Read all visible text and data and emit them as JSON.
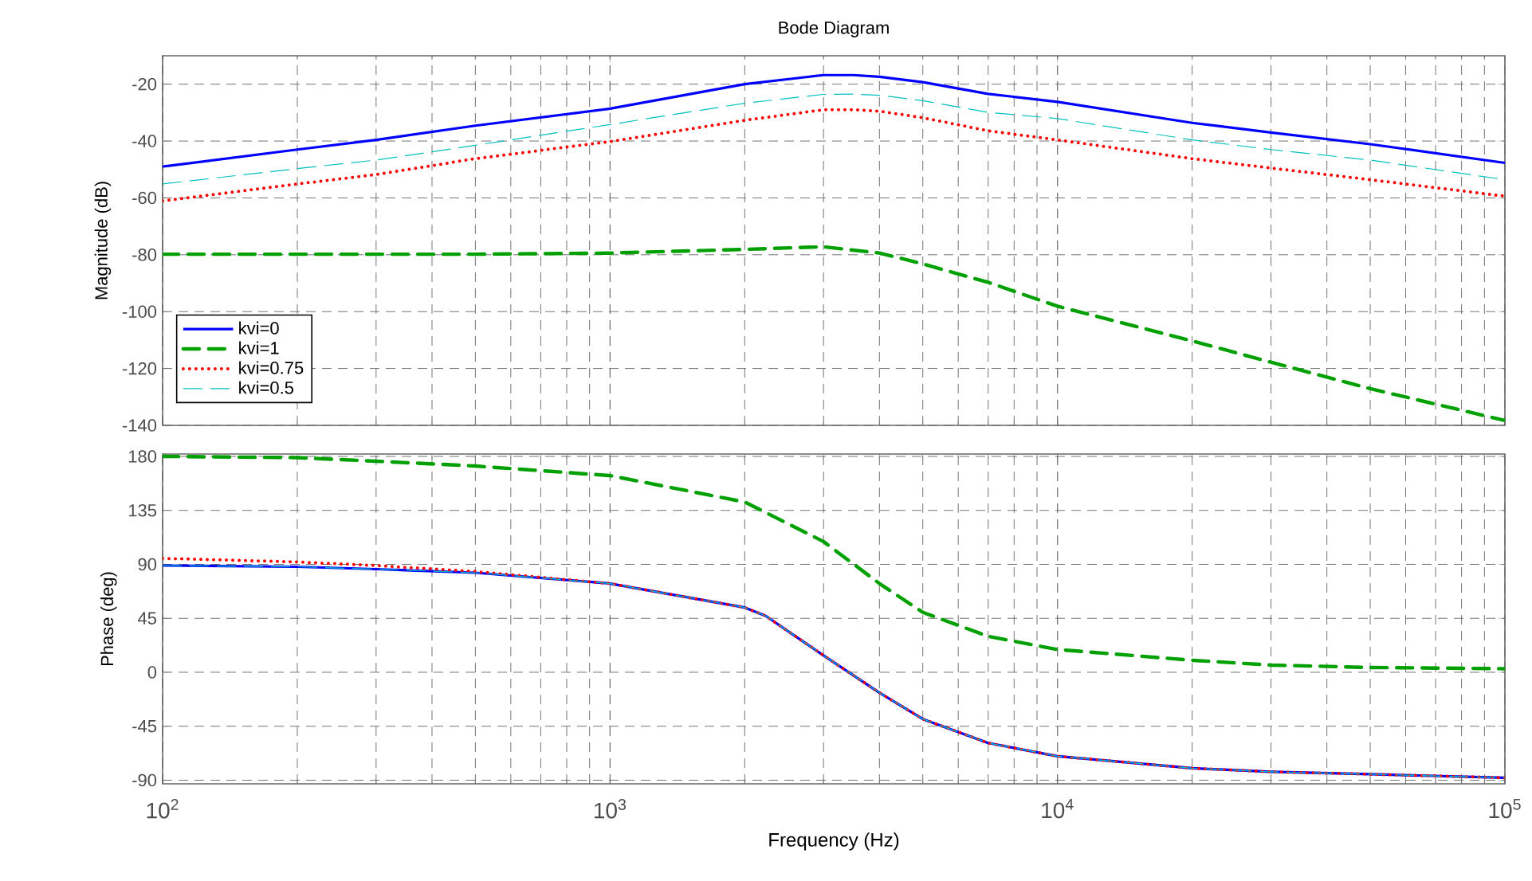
{
  "chart_data": [
    {
      "type": "line",
      "title": "Bode Diagram",
      "ylabel": "Magnitude (dB)",
      "log": "x",
      "grid": true,
      "legend": "bottom left",
      "tick_labels": "y",
      "xlim": [
        100,
        100000
      ],
      "xticks": [
        {
          "value": 100,
          "label": null
        },
        {
          "value": 1000,
          "label": null
        },
        {
          "value": 10000,
          "label": null
        },
        {
          "value": 100000,
          "label": null
        }
      ],
      "ylim": [
        -140,
        -10
      ],
      "yticks": [
        -140,
        -120,
        -100,
        -80,
        -60,
        -40,
        -20
      ],
      "series": [
        {
          "name": "kvi=0",
          "color": "#0000ff",
          "line_style": "solid",
          "x": [
            100,
            200,
            300,
            500,
            1000,
            2000,
            3000,
            3500,
            4000,
            5000,
            7000,
            10000,
            20000,
            30000,
            50000,
            100000
          ],
          "values": [
            -49.0,
            -43.0,
            -39.6,
            -34.6,
            -28.6,
            -20.0,
            -16.8,
            -16.8,
            -17.4,
            -19.3,
            -23.4,
            -26.2,
            -33.6,
            -37.0,
            -41.1,
            -47.7
          ]
        },
        {
          "name": "kvi=1",
          "color": "#00a000",
          "line_style": "dashdot",
          "x": [
            100,
            500,
            1000,
            2000,
            3000,
            4000,
            5000,
            7000,
            10000,
            20000,
            30000,
            50000,
            100000
          ],
          "values": [
            -79.8,
            -79.8,
            -79.4,
            -78.1,
            -77.2,
            -79.4,
            -83.2,
            -89.7,
            -98.1,
            -110.3,
            -117.8,
            -127.1,
            -138.3
          ]
        },
        {
          "name": "kvi=0.75",
          "color": "#ff0000",
          "line_style": "dotted",
          "x": [
            100,
            200,
            300,
            500,
            1000,
            2000,
            3000,
            3500,
            4000,
            5000,
            7000,
            10000,
            20000,
            30000,
            50000,
            100000
          ],
          "values": [
            -61.1,
            -55.1,
            -51.8,
            -46.2,
            -40.2,
            -32.7,
            -29.0,
            -29.0,
            -29.5,
            -31.8,
            -36.4,
            -39.6,
            -46.2,
            -49.5,
            -53.6,
            -59.4
          ]
        },
        {
          "name": "kvi=0.5",
          "color": "#00c0c0",
          "line_style": "dashed",
          "x": [
            100,
            200,
            300,
            500,
            1000,
            2000,
            3000,
            3500,
            4000,
            5000,
            7000,
            10000,
            20000,
            30000,
            50000,
            100000
          ],
          "values": [
            -55.1,
            -49.7,
            -46.7,
            -41.5,
            -34.2,
            -26.7,
            -23.6,
            -23.5,
            -23.9,
            -25.8,
            -29.9,
            -32.1,
            -39.6,
            -43.0,
            -46.7,
            -53.6
          ]
        }
      ]
    },
    {
      "type": "line",
      "xlabel": "Frequency  (Hz)",
      "ylabel": "Phase (deg)",
      "log": "x",
      "grid": true,
      "xlim": [
        100,
        100000
      ],
      "xticks": [
        {
          "value": 100,
          "label": "10$^{2}$"
        },
        {
          "value": 1000,
          "label": "10$^{3}$"
        },
        {
          "value": 10000,
          "label": "10$^{4}$"
        },
        {
          "value": 100000,
          "label": "10$^{5}$"
        }
      ],
      "ylim": [
        -93,
        182
      ],
      "yticks": [
        -90,
        -45,
        0,
        45,
        90,
        135,
        180
      ],
      "series": [
        {
          "color": "#0000ff",
          "line_style": "solid",
          "x": [
            100,
            200,
            300,
            500,
            1000,
            2000,
            2228,
            3000,
            4000,
            5000,
            7000,
            10000,
            20000,
            30000,
            50000,
            100000
          ],
          "values": [
            89,
            88,
            86,
            83,
            74,
            54,
            47,
            14,
            -17,
            -39,
            -59,
            -70,
            -80,
            -83,
            -85,
            -88
          ]
        },
        {
          "color": "#00a000",
          "line_style": "dashdot",
          "x": [
            100,
            200,
            300,
            500,
            1000,
            2000,
            3000,
            4000,
            5000,
            7000,
            10000,
            20000,
            30000,
            50000,
            100000
          ],
          "values": [
            180,
            179,
            176,
            172,
            164,
            142,
            109,
            74,
            50,
            30,
            19,
            10,
            6,
            4,
            3
          ]
        },
        {
          "color": "#ff0000",
          "line_style": "dotted",
          "x": [
            100,
            200,
            300,
            500,
            1000,
            2000,
            2228,
            3000,
            4000,
            5000,
            7000,
            10000,
            20000,
            30000,
            50000,
            100000
          ],
          "values": [
            95,
            92,
            89,
            84,
            74,
            54,
            47,
            14,
            -17,
            -39,
            -59,
            -70,
            -80,
            -83,
            -85,
            -88
          ]
        },
        {
          "color": "#00c0c0",
          "line_style": "dashed",
          "x": [
            100,
            200,
            300,
            500,
            1000,
            2000,
            2228,
            3000,
            4000,
            5000,
            7000,
            10000,
            20000,
            30000,
            50000,
            100000
          ],
          "values": [
            89,
            88,
            86,
            83,
            74,
            54,
            47,
            14,
            -17,
            -39,
            -59,
            -70,
            -80,
            -83,
            -85,
            -88
          ]
        }
      ]
    }
  ]
}
